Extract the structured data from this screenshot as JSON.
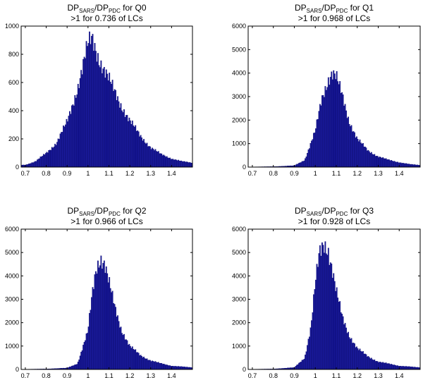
{
  "chart_data": [
    {
      "type": "bar",
      "title_parts": {
        "a": "DP",
        "a_sub": "SARS",
        "b": "/DP",
        "b_sub": "PDC",
        "c": " for Q0"
      },
      "subtitle": ">1 for 0.736 of LCs",
      "xlim": [
        0.68,
        1.5
      ],
      "ylim": [
        0,
        1000
      ],
      "xticks": [
        "0.7",
        "0.8",
        "0.9",
        "1",
        "1.1",
        "1.2",
        "1.3",
        "1.4"
      ],
      "yticks": [
        "0",
        "200",
        "400",
        "600",
        "800",
        "1000"
      ],
      "x": [
        0.7,
        0.75,
        0.8,
        0.85,
        0.9,
        0.95,
        1.0,
        1.02,
        1.05,
        1.1,
        1.15,
        1.2,
        1.25,
        1.3,
        1.35,
        1.4,
        1.45,
        1.5
      ],
      "values": [
        15,
        40,
        100,
        170,
        320,
        560,
        860,
        910,
        780,
        620,
        460,
        330,
        220,
        140,
        90,
        60,
        40,
        30
      ]
    },
    {
      "type": "bar",
      "title_parts": {
        "a": "DP",
        "a_sub": "SARS",
        "b": "/DP",
        "b_sub": "PDC",
        "c": " for Q1"
      },
      "subtitle": ">1 for 0.968 of LCs",
      "xlim": [
        0.68,
        1.5
      ],
      "ylim": [
        0,
        6000
      ],
      "xticks": [
        "0.7",
        "0.8",
        "0.9",
        "1",
        "1.1",
        "1.2",
        "1.3",
        "1.4"
      ],
      "yticks": [
        "0",
        "1000",
        "2000",
        "3000",
        "4000",
        "5000",
        "6000"
      ],
      "x": [
        0.7,
        0.8,
        0.9,
        0.95,
        1.0,
        1.03,
        1.06,
        1.08,
        1.1,
        1.13,
        1.16,
        1.2,
        1.25,
        1.3,
        1.35,
        1.4,
        1.45,
        1.5
      ],
      "values": [
        10,
        20,
        60,
        300,
        1500,
        2900,
        3700,
        4000,
        3800,
        3000,
        2000,
        1200,
        700,
        450,
        300,
        200,
        120,
        80
      ]
    },
    {
      "type": "bar",
      "title_parts": {
        "a": "DP",
        "a_sub": "SARS",
        "b": "/DP",
        "b_sub": "PDC",
        "c": " for Q2"
      },
      "subtitle": ">1 for 0.966 of LCs",
      "xlim": [
        0.68,
        1.5
      ],
      "ylim": [
        0,
        6000
      ],
      "xticks": [
        "0.7",
        "0.8",
        "0.9",
        "1",
        "1.1",
        "1.2",
        "1.3",
        "1.4"
      ],
      "yticks": [
        "0",
        "1000",
        "2000",
        "3000",
        "4000",
        "5000",
        "6000"
      ],
      "x": [
        0.7,
        0.8,
        0.9,
        0.95,
        1.0,
        1.02,
        1.04,
        1.06,
        1.08,
        1.1,
        1.13,
        1.16,
        1.2,
        1.25,
        1.3,
        1.35,
        1.4,
        1.5
      ],
      "values": [
        10,
        20,
        60,
        250,
        1600,
        3200,
        4400,
        4800,
        4500,
        3700,
        2600,
        1700,
        1000,
        600,
        380,
        250,
        150,
        80
      ]
    },
    {
      "type": "bar",
      "title_parts": {
        "a": "DP",
        "a_sub": "SARS",
        "b": "/DP",
        "b_sub": "PDC",
        "c": " for Q3"
      },
      "subtitle": ">1 for 0.928 of LCs",
      "xlim": [
        0.68,
        1.5
      ],
      "ylim": [
        0,
        6000
      ],
      "xticks": [
        "0.7",
        "0.8",
        "0.9",
        "1",
        "1.1",
        "1.2",
        "1.3",
        "1.4"
      ],
      "yticks": [
        "0",
        "1000",
        "2000",
        "3000",
        "4000",
        "5000",
        "6000"
      ],
      "x": [
        0.7,
        0.8,
        0.9,
        0.95,
        0.98,
        1.0,
        1.02,
        1.04,
        1.06,
        1.08,
        1.1,
        1.13,
        1.16,
        1.2,
        1.25,
        1.3,
        1.4,
        1.5
      ],
      "values": [
        10,
        20,
        80,
        500,
        1800,
        3600,
        5000,
        5450,
        5200,
        4300,
        3300,
        2200,
        1500,
        900,
        550,
        330,
        150,
        80
      ]
    }
  ]
}
